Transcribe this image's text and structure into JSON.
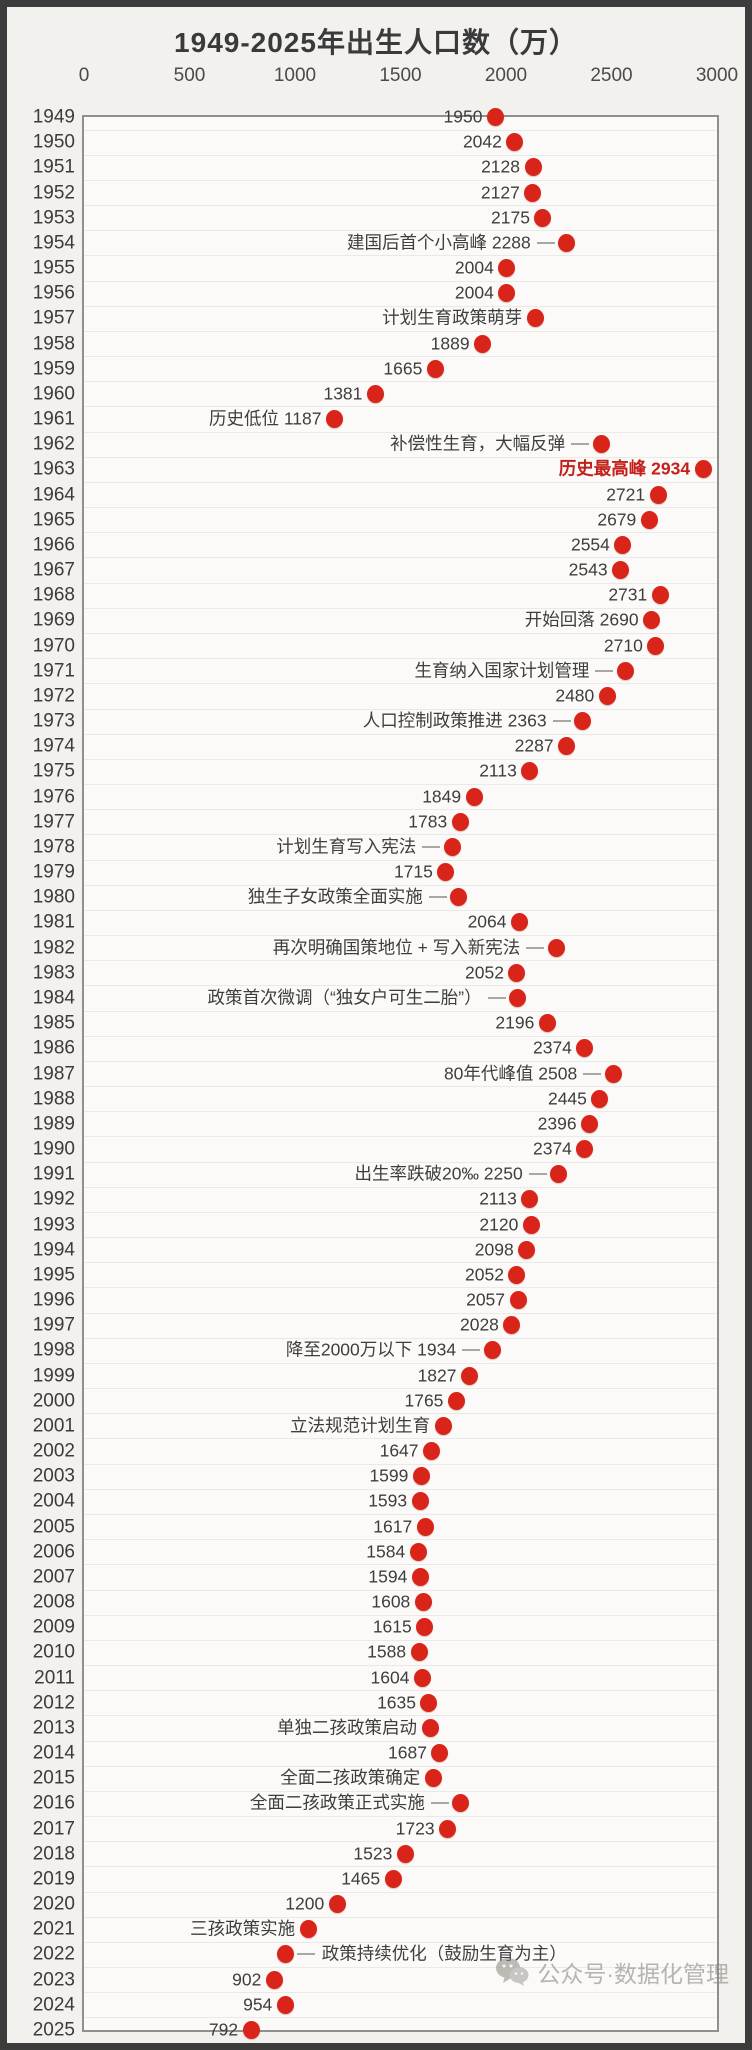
{
  "watermark": {
    "icon": "wechat-icon",
    "text": "公众号·数据化管理"
  },
  "colors": {
    "dot": "#d92419",
    "highlight_label": "#c2201a",
    "text": "#3d3d3d",
    "plot_border": "#8f8f8f",
    "grid": "#e7e5e2",
    "background": "#f3f1ee",
    "plot_background": "#fbfaf8"
  },
  "chart_data": {
    "type": "scatter",
    "title": "1949-2025年出生人口数（万）",
    "xlabel": "",
    "ylabel": "",
    "x_axis": {
      "min": 0,
      "max": 3000,
      "ticks": [
        0,
        500,
        1000,
        1500,
        2000,
        2500,
        3000
      ]
    },
    "grid": true,
    "legend": false,
    "points": [
      {
        "year": "1949",
        "value": 1950,
        "label": "1950"
      },
      {
        "year": "1950",
        "value": 2042,
        "label": "2042"
      },
      {
        "year": "1951",
        "value": 2128,
        "label": "2128"
      },
      {
        "year": "1952",
        "value": 2127,
        "label": "2127"
      },
      {
        "year": "1953",
        "value": 2175,
        "label": "2175"
      },
      {
        "year": "1954",
        "value": 2288,
        "label": "建国后首个小高峰 2288",
        "leader": true
      },
      {
        "year": "1955",
        "value": 2004,
        "label": "2004"
      },
      {
        "year": "1956",
        "value": 2004,
        "label": "2004"
      },
      {
        "year": "1957",
        "value": 2138,
        "label": "计划生育政策萌芽"
      },
      {
        "year": "1958",
        "value": 1889,
        "label": "1889"
      },
      {
        "year": "1959",
        "value": 1665,
        "label": "1665"
      },
      {
        "year": "1960",
        "value": 1381,
        "label": "1381"
      },
      {
        "year": "1961",
        "value": 1187,
        "label": "历史低位 1187"
      },
      {
        "year": "1962",
        "value": 2451,
        "label": "补偿性生育，大幅反弹",
        "leader": true
      },
      {
        "year": "1963",
        "value": 2934,
        "label": "历史最高峰 2934",
        "highlight": true
      },
      {
        "year": "1964",
        "value": 2721,
        "label": "2721"
      },
      {
        "year": "1965",
        "value": 2679,
        "label": "2679"
      },
      {
        "year": "1966",
        "value": 2554,
        "label": "2554"
      },
      {
        "year": "1967",
        "value": 2543,
        "label": "2543"
      },
      {
        "year": "1968",
        "value": 2731,
        "label": "2731"
      },
      {
        "year": "1969",
        "value": 2690,
        "label": "开始回落 2690"
      },
      {
        "year": "1970",
        "value": 2710,
        "label": "2710"
      },
      {
        "year": "1971",
        "value": 2566,
        "label": "生育纳入国家计划管理",
        "leader": true
      },
      {
        "year": "1972",
        "value": 2480,
        "label": "2480"
      },
      {
        "year": "1973",
        "value": 2363,
        "label": "人口控制政策推进 2363",
        "leader": true
      },
      {
        "year": "1974",
        "value": 2287,
        "label": "2287"
      },
      {
        "year": "1975",
        "value": 2113,
        "label": "2113"
      },
      {
        "year": "1976",
        "value": 1849,
        "label": "1849"
      },
      {
        "year": "1977",
        "value": 1783,
        "label": "1783"
      },
      {
        "year": "1978",
        "value": 1745,
        "label": "计划生育写入宪法",
        "leader": true
      },
      {
        "year": "1979",
        "value": 1715,
        "label": "1715"
      },
      {
        "year": "1980",
        "value": 1776,
        "label": "独生子女政策全面实施",
        "leader": true
      },
      {
        "year": "1981",
        "value": 2064,
        "label": "2064"
      },
      {
        "year": "1982",
        "value": 2238,
        "label": "再次明确国策地位 + 写入新宪法",
        "leader": true
      },
      {
        "year": "1983",
        "value": 2052,
        "label": "2052"
      },
      {
        "year": "1984",
        "value": 2055,
        "label": "政策首次微调（“独女户可生二胎”）",
        "leader": true
      },
      {
        "year": "1985",
        "value": 2196,
        "label": "2196"
      },
      {
        "year": "1986",
        "value": 2374,
        "label": "2374"
      },
      {
        "year": "1987",
        "value": 2508,
        "label": "80年代峰值 2508",
        "leader": true
      },
      {
        "year": "1988",
        "value": 2445,
        "label": "2445"
      },
      {
        "year": "1989",
        "value": 2396,
        "label": "2396"
      },
      {
        "year": "1990",
        "value": 2374,
        "label": "2374"
      },
      {
        "year": "1991",
        "value": 2250,
        "label": "出生率跌破20‰ 2250",
        "leader": true
      },
      {
        "year": "1992",
        "value": 2113,
        "label": "2113"
      },
      {
        "year": "1993",
        "value": 2120,
        "label": "2120"
      },
      {
        "year": "1994",
        "value": 2098,
        "label": "2098"
      },
      {
        "year": "1995",
        "value": 2052,
        "label": "2052"
      },
      {
        "year": "1996",
        "value": 2057,
        "label": "2057"
      },
      {
        "year": "1997",
        "value": 2028,
        "label": "2028"
      },
      {
        "year": "1998",
        "value": 1934,
        "label": "降至2000万以下 1934",
        "leader": true
      },
      {
        "year": "1999",
        "value": 1827,
        "label": "1827"
      },
      {
        "year": "2000",
        "value": 1765,
        "label": "1765"
      },
      {
        "year": "2001",
        "value": 1702,
        "label": "立法规范计划生育"
      },
      {
        "year": "2002",
        "value": 1647,
        "label": "1647"
      },
      {
        "year": "2003",
        "value": 1599,
        "label": "1599"
      },
      {
        "year": "2004",
        "value": 1593,
        "label": "1593"
      },
      {
        "year": "2005",
        "value": 1617,
        "label": "1617"
      },
      {
        "year": "2006",
        "value": 1584,
        "label": "1584"
      },
      {
        "year": "2007",
        "value": 1594,
        "label": "1594"
      },
      {
        "year": "2008",
        "value": 1608,
        "label": "1608"
      },
      {
        "year": "2009",
        "value": 1615,
        "label": "1615"
      },
      {
        "year": "2010",
        "value": 1588,
        "label": "1588"
      },
      {
        "year": "2011",
        "value": 1604,
        "label": "1604"
      },
      {
        "year": "2012",
        "value": 1635,
        "label": "1635"
      },
      {
        "year": "2013",
        "value": 1640,
        "label": "单独二孩政策启动"
      },
      {
        "year": "2014",
        "value": 1687,
        "label": "1687"
      },
      {
        "year": "2015",
        "value": 1655,
        "label": "全面二孩政策确定"
      },
      {
        "year": "2016",
        "value": 1786,
        "label": "全面二孩政策正式实施",
        "leader": true
      },
      {
        "year": "2017",
        "value": 1723,
        "label": "1723"
      },
      {
        "year": "2018",
        "value": 1523,
        "label": "1523"
      },
      {
        "year": "2019",
        "value": 1465,
        "label": "1465"
      },
      {
        "year": "2020",
        "value": 1200,
        "label": "1200"
      },
      {
        "year": "2021",
        "value": 1062,
        "label": "三孩政策实施"
      },
      {
        "year": "2022",
        "value": 956,
        "label": "政策持续优化（鼓励生育为主）",
        "leader": true,
        "side": "right"
      },
      {
        "year": "2023",
        "value": 902,
        "label": "902"
      },
      {
        "year": "2024",
        "value": 954,
        "label": "954"
      },
      {
        "year": "2025",
        "value": 792,
        "label": "792"
      }
    ]
  }
}
